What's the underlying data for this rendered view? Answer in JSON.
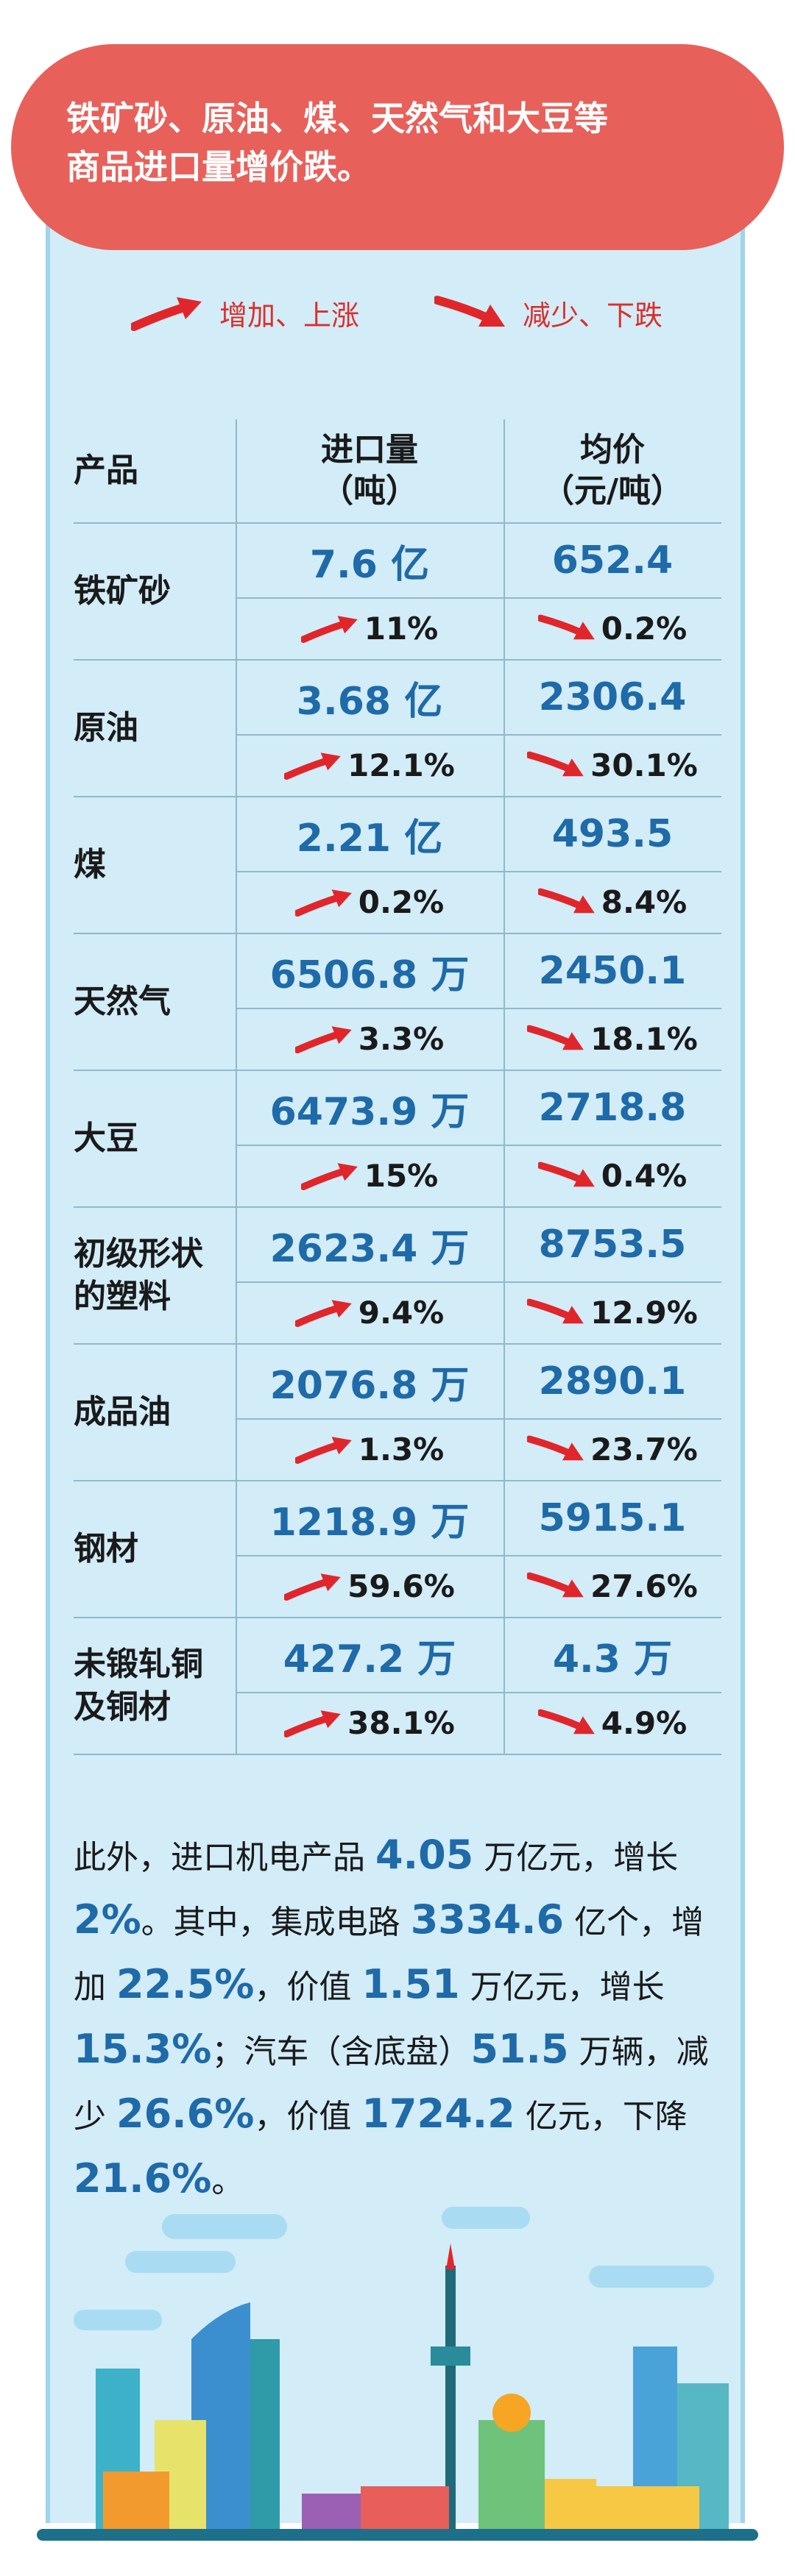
{
  "banner": {
    "line1": "铁矿砂、原油、煤、天然气和大豆等",
    "line2": "商品进口量增价跌。"
  },
  "legend": {
    "up_label": "增加、上涨",
    "down_label": "减少、下跌",
    "up_color": "#e0262b",
    "down_color": "#e0262b"
  },
  "table": {
    "headers": {
      "product": "产品",
      "volume_line1": "进口量",
      "volume_line2": "（吨）",
      "price_line1": "均价",
      "price_line2": "（元/吨）"
    },
    "rows": [
      {
        "name1": "铁矿砂",
        "name2": "",
        "volume": "7.6 亿",
        "price": "652.4",
        "volume_change": "11%",
        "price_change": "0.2%"
      },
      {
        "name1": "原油",
        "name2": "",
        "volume": "3.68 亿",
        "price": "2306.4",
        "volume_change": "12.1%",
        "price_change": "30.1%"
      },
      {
        "name1": "煤",
        "name2": "",
        "volume": "2.21 亿",
        "price": "493.5",
        "volume_change": "0.2%",
        "price_change": "8.4%"
      },
      {
        "name1": "天然气",
        "name2": "",
        "volume": "6506.8 万",
        "price": "2450.1",
        "volume_change": "3.3%",
        "price_change": "18.1%"
      },
      {
        "name1": "大豆",
        "name2": "",
        "volume": "6473.9 万",
        "price": "2718.8",
        "volume_change": "15%",
        "price_change": "0.4%"
      },
      {
        "name1": "初级形状",
        "name2": "的塑料",
        "volume": "2623.4 万",
        "price": "8753.5",
        "volume_change": "9.4%",
        "price_change": "12.9%"
      },
      {
        "name1": "成品油",
        "name2": "",
        "volume": "2076.8 万",
        "price": "2890.1",
        "volume_change": "1.3%",
        "price_change": "23.7%"
      },
      {
        "name1": "钢材",
        "name2": "",
        "volume": "1218.9 万",
        "price": "5915.1",
        "volume_change": "59.6%",
        "price_change": "27.6%"
      },
      {
        "name1": "未锻轧铜",
        "name2": "及铜材",
        "volume": "427.2 万",
        "price": "4.3 万",
        "volume_change": "38.1%",
        "price_change": "4.9%"
      }
    ]
  },
  "paragraph": {
    "p1": "此外，进口机电产品 ",
    "v1": "4.05",
    "p2": " 万亿元，增长 ",
    "v2": "2%",
    "p3": "。其中，集成电路 ",
    "v3": "3334.6",
    "p4": " 亿个，增加 ",
    "v4": "22.5%",
    "p5": "，价值 ",
    "v5": "1.51",
    "p6": " 万亿元，增长 ",
    "v6": "15.3%",
    "p7": "；汽车（含底盘）",
    "v7": "51.5",
    "p8": " 万辆，减少 ",
    "v8": "26.6%",
    "p9": "，价值 ",
    "v9": "1724.2",
    "p10": " 亿元，下降 ",
    "v10": "21.6%",
    "p11": "。"
  }
}
